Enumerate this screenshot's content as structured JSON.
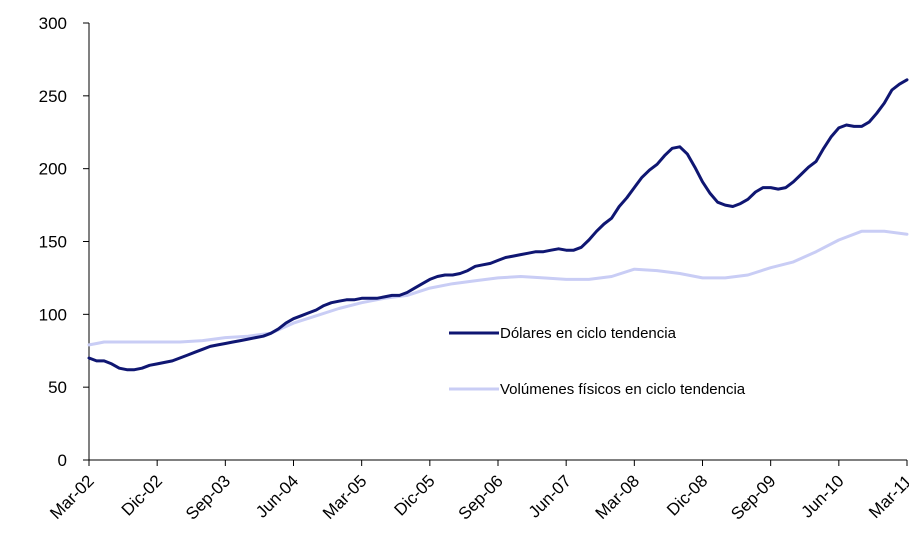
{
  "chart_data": {
    "type": "line",
    "title": "",
    "xlabel": "",
    "ylabel": "",
    "ylim": [
      0,
      300
    ],
    "yticks": [
      0,
      50,
      100,
      150,
      200,
      250,
      300
    ],
    "xtick_labels": [
      "Mar-02",
      "Dic-02",
      "Sep-03",
      "Jun-04",
      "Mar-05",
      "Dic-05",
      "Sep-06",
      "Jun-07",
      "Mar-08",
      "Dic-08",
      "Sep-09",
      "Jun-10",
      "Mar-11"
    ],
    "x_range_months": [
      0,
      108
    ],
    "grid": false,
    "legend_position": "center-right",
    "series": [
      {
        "name": "Dólares en ciclo tendencia",
        "color": "#0f1672",
        "points": [
          [
            0,
            70
          ],
          [
            1,
            68
          ],
          [
            2,
            68
          ],
          [
            3,
            66
          ],
          [
            4,
            63
          ],
          [
            5,
            62
          ],
          [
            6,
            62
          ],
          [
            7,
            63
          ],
          [
            8,
            65
          ],
          [
            9,
            66
          ],
          [
            10,
            67
          ],
          [
            11,
            68
          ],
          [
            12,
            70
          ],
          [
            13,
            72
          ],
          [
            14,
            74
          ],
          [
            15,
            76
          ],
          [
            16,
            78
          ],
          [
            17,
            79
          ],
          [
            18,
            80
          ],
          [
            19,
            81
          ],
          [
            20,
            82
          ],
          [
            21,
            83
          ],
          [
            22,
            84
          ],
          [
            23,
            85
          ],
          [
            24,
            87
          ],
          [
            25,
            90
          ],
          [
            26,
            94
          ],
          [
            27,
            97
          ],
          [
            28,
            99
          ],
          [
            29,
            101
          ],
          [
            30,
            103
          ],
          [
            31,
            106
          ],
          [
            32,
            108
          ],
          [
            33,
            109
          ],
          [
            34,
            110
          ],
          [
            35,
            110
          ],
          [
            36,
            111
          ],
          [
            37,
            111
          ],
          [
            38,
            111
          ],
          [
            39,
            112
          ],
          [
            40,
            113
          ],
          [
            41,
            113
          ],
          [
            42,
            115
          ],
          [
            43,
            118
          ],
          [
            44,
            121
          ],
          [
            45,
            124
          ],
          [
            46,
            126
          ],
          [
            47,
            127
          ],
          [
            48,
            127
          ],
          [
            49,
            128
          ],
          [
            50,
            130
          ],
          [
            51,
            133
          ],
          [
            52,
            134
          ],
          [
            53,
            135
          ],
          [
            54,
            137
          ],
          [
            55,
            139
          ],
          [
            56,
            140
          ],
          [
            57,
            141
          ],
          [
            58,
            142
          ],
          [
            59,
            143
          ],
          [
            60,
            143
          ],
          [
            61,
            144
          ],
          [
            62,
            145
          ],
          [
            63,
            144
          ],
          [
            64,
            144
          ],
          [
            65,
            146
          ],
          [
            66,
            151
          ],
          [
            67,
            157
          ],
          [
            68,
            162
          ],
          [
            69,
            166
          ],
          [
            70,
            174
          ],
          [
            71,
            180
          ],
          [
            72,
            187
          ],
          [
            73,
            194
          ],
          [
            74,
            199
          ],
          [
            75,
            203
          ],
          [
            76,
            209
          ],
          [
            77,
            214
          ],
          [
            78,
            215
          ],
          [
            79,
            210
          ],
          [
            80,
            201
          ],
          [
            81,
            191
          ],
          [
            82,
            183
          ],
          [
            83,
            177
          ],
          [
            84,
            175
          ],
          [
            85,
            174
          ],
          [
            86,
            176
          ],
          [
            87,
            179
          ],
          [
            88,
            184
          ],
          [
            89,
            187
          ],
          [
            90,
            187
          ],
          [
            91,
            186
          ],
          [
            92,
            187
          ],
          [
            93,
            191
          ],
          [
            94,
            196
          ],
          [
            95,
            201
          ],
          [
            96,
            205
          ],
          [
            97,
            214
          ],
          [
            98,
            222
          ],
          [
            99,
            228
          ],
          [
            100,
            230
          ],
          [
            101,
            229
          ],
          [
            102,
            229
          ],
          [
            103,
            232
          ],
          [
            104,
            238
          ],
          [
            105,
            245
          ],
          [
            106,
            254
          ],
          [
            107,
            258
          ],
          [
            108,
            261
          ]
        ]
      },
      {
        "name": "Volúmenes físicos en ciclo tendencia",
        "color": "#c9cdf5",
        "points": [
          [
            0,
            79
          ],
          [
            1,
            80
          ],
          [
            2,
            81
          ],
          [
            3,
            81
          ],
          [
            6,
            81
          ],
          [
            9,
            81
          ],
          [
            12,
            81
          ],
          [
            15,
            82
          ],
          [
            18,
            84
          ],
          [
            21,
            85
          ],
          [
            24,
            87
          ],
          [
            27,
            94
          ],
          [
            30,
            99
          ],
          [
            33,
            104
          ],
          [
            36,
            108
          ],
          [
            39,
            111
          ],
          [
            42,
            113
          ],
          [
            45,
            118
          ],
          [
            48,
            121
          ],
          [
            51,
            123
          ],
          [
            54,
            125
          ],
          [
            57,
            126
          ],
          [
            60,
            125
          ],
          [
            63,
            124
          ],
          [
            66,
            124
          ],
          [
            69,
            126
          ],
          [
            72,
            131
          ],
          [
            75,
            130
          ],
          [
            78,
            128
          ],
          [
            81,
            125
          ],
          [
            84,
            125
          ],
          [
            87,
            127
          ],
          [
            90,
            132
          ],
          [
            93,
            136
          ],
          [
            96,
            143
          ],
          [
            99,
            151
          ],
          [
            102,
            157
          ],
          [
            105,
            157
          ],
          [
            108,
            155
          ]
        ]
      }
    ]
  }
}
